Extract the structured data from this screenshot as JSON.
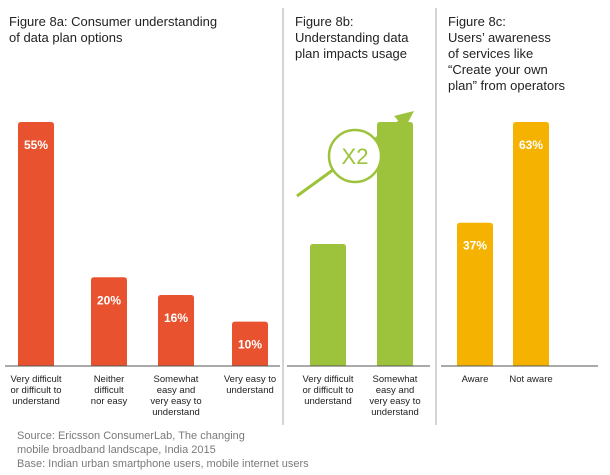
{
  "colors": {
    "orange": "#e8522f",
    "green": "#9cc33b",
    "yellow": "#f5b200",
    "divider": "#aaaaaa",
    "baseline": "#555555",
    "value_label": "#ffffff",
    "category_label": "#222222",
    "note": "#7a7a7a"
  },
  "chart_data": [
    {
      "type": "bar",
      "title": "Figure 8a: Consumer understanding\nof data plan options",
      "categories": [
        "Very difficult\nor difficult to\nunderstand",
        "Neither\ndifficult\nnor easy",
        "Somewhat\neasy and\nvery easy to\nunderstand",
        "Very easy to\nunderstand"
      ],
      "values": [
        55,
        20,
        16,
        10
      ],
      "value_labels": [
        "55%",
        "20%",
        "16%",
        "10%"
      ],
      "unit": "%",
      "ylim": [
        0,
        60
      ],
      "color": "orange",
      "grid": false
    },
    {
      "type": "bar",
      "title": "Figure 8b:\nUnderstanding data\nplan impacts usage",
      "categories": [
        "Very difficult\nor difficult to\nunderstand",
        "Somewhat\neasy and\nvery easy to\nunderstand"
      ],
      "values": [
        1,
        2
      ],
      "value_labels": [],
      "annotation": "X2",
      "color": "green",
      "grid": false
    },
    {
      "type": "bar",
      "title": "Figure 8c:\nUsers’ awareness\nof services like\n“Create your own\nplan” from operators",
      "categories": [
        "Aware",
        "Not aware"
      ],
      "values": [
        37,
        63
      ],
      "value_labels": [
        "37%",
        "63%"
      ],
      "unit": "%",
      "ylim": [
        0,
        70
      ],
      "color": "yellow",
      "grid": false
    }
  ],
  "source": {
    "line1": "Source: Ericsson ConsumerLab, The changing",
    "line2": "mobile broadband landscape, India 2015",
    "line3": "Base: Indian urban smartphone users, mobile internet users"
  }
}
